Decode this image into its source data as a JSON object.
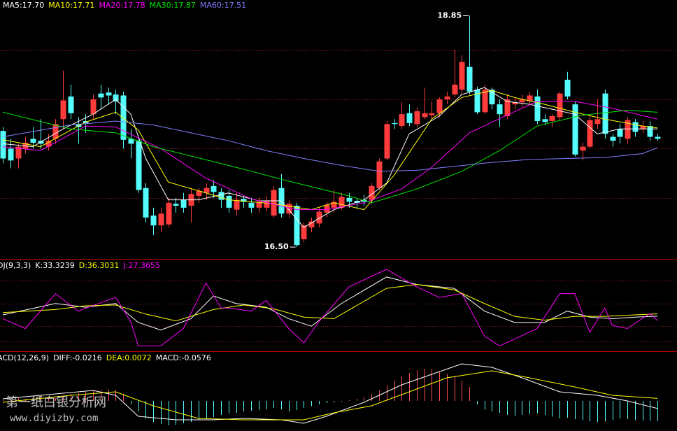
{
  "chart_data": [
    {
      "type": "candlestick",
      "up_color": "#ff3b3b",
      "down_color": "#54fcfc",
      "ylim": [
        16.38,
        19.01
      ],
      "grid_values": [
        18.5,
        18.0,
        17.5,
        17.0
      ],
      "open": [
        17.68,
        17.5,
        17.4,
        17.5,
        17.6,
        17.58,
        17.52,
        17.6,
        17.8,
        18.03,
        17.75,
        17.78,
        17.85,
        18.06,
        18.07,
        18.05,
        18.04,
        17.6,
        17.58,
        17.1,
        16.82,
        16.72,
        16.73,
        16.94,
        16.98,
        16.92,
        17.02,
        17.05,
        17.12,
        17.06,
        17.02,
        16.88,
        16.99,
        16.95,
        16.9,
        16.9,
        16.82,
        17.1,
        16.84,
        16.92,
        16.58,
        16.7,
        16.74,
        16.85,
        16.9,
        16.9,
        17.0,
        16.97,
        16.98,
        16.98,
        17.1,
        17.4,
        17.76,
        17.73,
        17.86,
        17.75,
        17.82,
        17.84,
        17.86,
        18.0,
        18.05,
        18.1,
        18.33,
        18.1,
        17.87,
        18.1,
        17.95,
        17.83,
        17.95,
        17.97,
        17.98,
        18.03,
        17.8,
        17.78,
        17.82,
        18.2,
        17.95,
        17.48,
        17.52,
        17.75,
        18.06,
        17.62,
        17.7,
        17.6,
        17.77,
        17.7,
        17.73,
        17.62
      ],
      "high": [
        17.72,
        17.6,
        17.55,
        17.62,
        17.72,
        17.8,
        17.65,
        17.8,
        18.29,
        18.15,
        17.82,
        17.85,
        18.05,
        18.15,
        18.12,
        18.1,
        18.08,
        17.7,
        17.6,
        17.15,
        16.9,
        16.9,
        17.0,
        17.0,
        17.05,
        17.1,
        17.1,
        17.15,
        17.18,
        17.1,
        17.08,
        17.05,
        17.02,
        17.0,
        17.0,
        17.02,
        17.12,
        17.24,
        16.98,
        16.95,
        16.75,
        16.8,
        16.9,
        16.96,
        17.08,
        17.05,
        17.05,
        17.0,
        17.03,
        17.15,
        17.4,
        17.78,
        17.8,
        17.97,
        17.95,
        17.92,
        18.12,
        17.98,
        18.02,
        18.08,
        18.5,
        18.45,
        18.85,
        18.13,
        18.15,
        18.12,
        18.0,
        18.05,
        18.02,
        18.05,
        18.08,
        18.1,
        17.85,
        17.85,
        18.08,
        18.28,
        17.98,
        17.56,
        17.83,
        18.0,
        18.1,
        17.65,
        17.75,
        17.82,
        17.8,
        17.78,
        17.78,
        17.65
      ],
      "low": [
        17.35,
        17.3,
        17.3,
        17.45,
        17.5,
        17.5,
        17.48,
        17.55,
        17.7,
        17.8,
        17.55,
        17.66,
        17.8,
        17.9,
        17.95,
        17.85,
        17.5,
        17.4,
        17.05,
        16.75,
        16.62,
        16.65,
        16.7,
        16.85,
        16.85,
        16.75,
        16.95,
        16.98,
        17.0,
        16.9,
        16.85,
        16.82,
        16.9,
        16.85,
        16.85,
        16.86,
        16.8,
        16.8,
        16.8,
        16.5,
        16.55,
        16.65,
        16.7,
        16.8,
        16.85,
        16.88,
        16.9,
        16.9,
        16.92,
        16.94,
        17.08,
        17.38,
        17.7,
        17.7,
        17.73,
        17.72,
        17.8,
        17.8,
        17.82,
        17.95,
        18.02,
        18.05,
        18.05,
        17.85,
        17.85,
        17.9,
        17.72,
        17.8,
        17.9,
        17.92,
        17.95,
        17.75,
        17.74,
        17.72,
        17.78,
        18.0,
        17.42,
        17.38,
        17.5,
        17.7,
        17.6,
        17.52,
        17.55,
        17.55,
        17.62,
        17.66,
        17.58,
        17.58
      ],
      "close": [
        17.4,
        17.38,
        17.52,
        17.56,
        17.56,
        17.55,
        17.58,
        17.75,
        17.99,
        17.86,
        17.72,
        17.76,
        18.0,
        18.02,
        18.04,
        17.98,
        17.59,
        17.55,
        17.08,
        16.8,
        16.72,
        16.84,
        16.95,
        16.92,
        16.9,
        17.04,
        17.07,
        17.1,
        17.06,
        16.98,
        16.9,
        16.98,
        16.96,
        16.9,
        16.96,
        16.97,
        17.08,
        16.84,
        16.94,
        16.52,
        16.72,
        16.76,
        16.86,
        16.93,
        16.96,
        17.01,
        16.96,
        16.95,
        16.96,
        17.12,
        17.37,
        17.75,
        17.75,
        17.85,
        17.76,
        17.88,
        17.86,
        17.86,
        18.0,
        18.03,
        18.15,
        18.38,
        18.08,
        17.87,
        18.1,
        17.95,
        17.85,
        18.0,
        17.97,
        18.0,
        18.04,
        17.78,
        17.77,
        17.83,
        18.06,
        18.03,
        17.44,
        17.52,
        17.79,
        17.8,
        17.65,
        17.58,
        17.62,
        17.79,
        17.67,
        17.73,
        17.62,
        17.6
      ],
      "series": [
        {
          "name": "MA5:17.70",
          "color": "#ffffff",
          "x": [
            0,
            4,
            8,
            12,
            15,
            17,
            19,
            22,
            26,
            30,
            34,
            37,
            40,
            44,
            48,
            51,
            54,
            58,
            61,
            64,
            67,
            70,
            73,
            76,
            79,
            82,
            85,
            87
          ],
          "values": [
            17.55,
            17.52,
            17.7,
            17.85,
            18.0,
            17.85,
            17.4,
            16.98,
            16.98,
            17.05,
            16.97,
            16.97,
            16.7,
            16.88,
            16.98,
            17.15,
            17.65,
            17.83,
            18.05,
            18.12,
            17.98,
            17.95,
            17.9,
            17.85,
            17.65,
            17.7,
            17.7,
            17.7
          ]
        },
        {
          "name": "MA10:17.71",
          "color": "#ffff00",
          "x": [
            0,
            5,
            11,
            15,
            18,
            22,
            27,
            30,
            36,
            41,
            44,
            48,
            52,
            57,
            61,
            65,
            68,
            72,
            76,
            80,
            85,
            87
          ],
          "values": [
            17.59,
            17.52,
            17.77,
            17.87,
            17.69,
            17.16,
            17.05,
            16.98,
            16.94,
            16.88,
            16.95,
            16.88,
            17.23,
            17.8,
            18.02,
            18.09,
            18.02,
            17.95,
            17.87,
            17.8,
            17.73,
            17.71
          ]
        },
        {
          "name": "MA20:17.78",
          "color": "#ff00ff",
          "x": [
            0,
            5,
            11,
            15,
            21,
            27,
            33,
            39,
            43,
            48,
            53,
            57,
            62,
            67,
            71,
            76,
            81,
            87
          ],
          "values": [
            17.52,
            17.48,
            17.73,
            17.72,
            17.5,
            17.2,
            16.99,
            16.88,
            16.88,
            16.95,
            17.09,
            17.31,
            17.66,
            17.84,
            17.98,
            17.98,
            17.91,
            17.8
          ]
        },
        {
          "name": "MA30:17.87",
          "color": "#00e600",
          "x": [
            0,
            9,
            15,
            20,
            30,
            38,
            46,
            49,
            55,
            61,
            66,
            71,
            77,
            83,
            87
          ],
          "values": [
            17.87,
            17.7,
            17.66,
            17.52,
            17.33,
            17.17,
            17.02,
            16.95,
            17.09,
            17.27,
            17.48,
            17.73,
            17.84,
            17.89,
            17.87
          ]
        },
        {
          "name": "MA60:17.51",
          "color": "#8080ff",
          "x": [
            0,
            9,
            15,
            20,
            25,
            30,
            35,
            40,
            45,
            50,
            55,
            60,
            65,
            70,
            75,
            80,
            85,
            87
          ],
          "values": [
            17.62,
            17.74,
            17.78,
            17.74,
            17.66,
            17.58,
            17.48,
            17.4,
            17.33,
            17.27,
            17.28,
            17.32,
            17.36,
            17.39,
            17.4,
            17.41,
            17.45,
            17.51
          ]
        }
      ],
      "annotations": [
        {
          "label": "18.85",
          "value": 18.85,
          "at": "high"
        },
        {
          "label": "16.50",
          "value": 16.5,
          "at": "low"
        }
      ]
    },
    {
      "type": "line",
      "title": "DJ(9,3,3)",
      "ylim": [
        -13,
        107
      ],
      "grid_values": [
        80,
        50,
        20,
        0
      ],
      "series": [
        {
          "name": "K:33.3239",
          "color": "#ffffff",
          "x": [
            0,
            7,
            11,
            15,
            18,
            21,
            25,
            28,
            31,
            35,
            38,
            41,
            45,
            51,
            55,
            60,
            64,
            68,
            72,
            75,
            78,
            81,
            84,
            87
          ],
          "values": [
            35,
            50,
            45,
            50,
            25,
            15,
            30,
            60,
            50,
            45,
            30,
            20,
            50,
            85,
            75,
            70,
            40,
            25,
            25,
            40,
            32,
            30,
            32,
            33.3239
          ]
        },
        {
          "name": "D:36.3031",
          "color": "#ffff00",
          "x": [
            0,
            7,
            11,
            15,
            19,
            23,
            28,
            32,
            36,
            40,
            44,
            51,
            55,
            60,
            64,
            68,
            72,
            76,
            80,
            84,
            87
          ],
          "values": [
            38,
            42,
            47,
            48,
            36,
            27,
            42,
            48,
            43,
            32,
            30,
            70,
            75,
            68,
            50,
            33,
            28,
            33,
            33,
            35,
            36.3031
          ]
        },
        {
          "name": "J:27.3655",
          "color": "#ff00ff",
          "x": [
            0,
            3,
            7,
            10,
            15,
            17,
            18,
            21,
            24,
            27,
            29,
            30,
            33,
            35,
            38,
            40,
            42,
            46,
            51,
            55,
            58,
            61,
            64,
            66,
            68,
            71,
            74,
            76,
            78,
            80,
            81,
            83,
            86,
            87
          ],
          "values": [
            30,
            17,
            63,
            40,
            58,
            26,
            -6,
            -6,
            17,
            77,
            44,
            44,
            40,
            54,
            17,
            -2,
            26,
            72,
            95,
            72,
            58,
            63,
            7,
            -6,
            3,
            17,
            63,
            63,
            12,
            44,
            21,
            17,
            37,
            27.3655
          ]
        }
      ]
    },
    {
      "type": "macd",
      "title": "ACD(12,26,9)",
      "ylim": [
        -0.086,
        0.138
      ],
      "up_color": "#ff5050",
      "down_color": "#54fcfc",
      "series": [
        {
          "name": "DIFF:-0.0216",
          "color": "#ffffff",
          "x": [
            0,
            5,
            12,
            15,
            18,
            23,
            28,
            32,
            37,
            40,
            43,
            48,
            53,
            57,
            61,
            65,
            69,
            74,
            79,
            83,
            87
          ],
          "values": [
            0.006,
            0.016,
            0.03,
            0.016,
            -0.044,
            -0.054,
            -0.054,
            -0.05,
            -0.054,
            -0.064,
            -0.044,
            -0.004,
            0.046,
            0.076,
            0.106,
            0.096,
            0.066,
            0.026,
            0.016,
            0.0,
            -0.0216
          ]
        },
        {
          "name": "DEA:0.0072",
          "color": "#ffff00",
          "x": [
            0,
            9,
            15,
            20,
            26,
            32,
            40,
            44,
            49,
            54,
            59,
            65,
            70,
            76,
            81,
            87
          ],
          "values": [
            -0.004,
            0.016,
            0.026,
            -0.014,
            -0.05,
            -0.054,
            -0.054,
            -0.034,
            -0.014,
            0.026,
            0.066,
            0.086,
            0.066,
            0.04,
            0.016,
            0.0072
          ]
        }
      ],
      "histogram": {
        "name": "MACD:-0.0576",
        "color": "#ffffff",
        "values": [
          0.004,
          0.006,
          0.008,
          0.006,
          0.01,
          0.012,
          0.01,
          0.008,
          0.014,
          0.02,
          0.022,
          0.025,
          0.028,
          0.03,
          0.032,
          0.03,
          0.02,
          -0.01,
          -0.03,
          -0.05,
          -0.06,
          -0.066,
          -0.07,
          -0.068,
          -0.064,
          -0.06,
          -0.055,
          -0.05,
          -0.046,
          -0.04,
          -0.036,
          -0.034,
          -0.03,
          -0.028,
          -0.025,
          -0.024,
          -0.02,
          -0.024,
          -0.03,
          -0.026,
          -0.02,
          -0.015,
          -0.01,
          -0.006,
          -0.004,
          -0.002,
          0.002,
          0.006,
          0.012,
          0.02,
          0.03,
          0.044,
          0.058,
          0.07,
          0.08,
          0.088,
          0.092,
          0.09,
          0.085,
          0.078,
          0.07,
          0.058,
          0.04,
          -0.01,
          -0.025,
          -0.03,
          -0.034,
          -0.04,
          -0.042,
          -0.04,
          -0.038,
          -0.036,
          -0.04,
          -0.045,
          -0.05,
          -0.048,
          -0.052,
          -0.055,
          -0.058,
          -0.06,
          -0.058,
          -0.055,
          -0.05,
          -0.052,
          -0.055,
          -0.056,
          -0.057,
          -0.0576
        ]
      }
    }
  ],
  "watermark": {
    "title": "第一纸白银分析网",
    "url": "www.diyizby.com"
  }
}
